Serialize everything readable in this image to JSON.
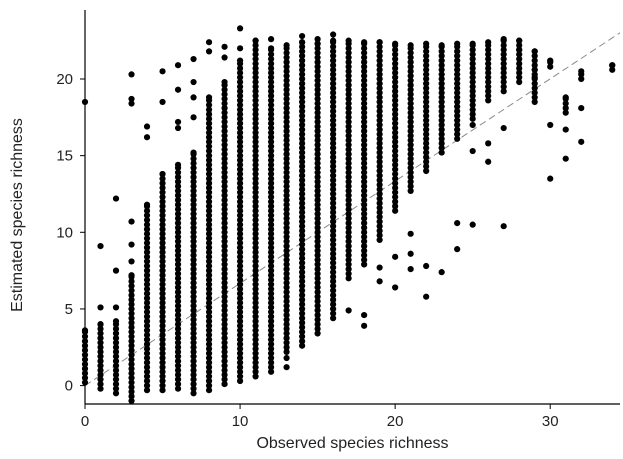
{
  "chart_data": {
    "type": "scatter",
    "xlabel": "Observed species richness",
    "ylabel": "Estimated species richness",
    "xlim": [
      0,
      34.5
    ],
    "ylim": [
      -1.2,
      24.5
    ],
    "xticks": [
      0,
      10,
      20,
      30
    ],
    "yticks": [
      0,
      5,
      10,
      15,
      20
    ],
    "grid": false,
    "reference_line": {
      "slope": 0.667,
      "intercept": 0,
      "style": "dashed"
    },
    "point_color": "#000000",
    "ref_line_color": "#8a8a8a",
    "columns": [
      {
        "x": 0,
        "ymin": 0.2,
        "ymax": 3.6,
        "extra": [
          18.5
        ]
      },
      {
        "x": 1,
        "ymin": -0.2,
        "ymax": 4.0,
        "extra": [
          5.1,
          9.1
        ]
      },
      {
        "x": 2,
        "ymin": -0.5,
        "ymax": 4.2,
        "extra": [
          5.1,
          7.5,
          12.2
        ]
      },
      {
        "x": 3,
        "ymin": -1.0,
        "ymax": 7.2,
        "extra": [
          8.1,
          9.2,
          10.7,
          18.4,
          18.7,
          20.3
        ]
      },
      {
        "x": 4,
        "ymin": -0.3,
        "ymax": 11.8,
        "extra": [
          16.2,
          16.9
        ]
      },
      {
        "x": 5,
        "ymin": -0.3,
        "ymax": 13.8,
        "extra": [
          18.5,
          20.5
        ]
      },
      {
        "x": 6,
        "ymin": -0.2,
        "ymax": 14.4,
        "extra": [
          16.8,
          17.2,
          19.3,
          20.9
        ]
      },
      {
        "x": 7,
        "ymin": -0.5,
        "ymax": 15.2,
        "extra": [
          17.5,
          18.8,
          19.8,
          21.3
        ]
      },
      {
        "x": 8,
        "ymin": -0.3,
        "ymax": 18.8,
        "extra": [
          21.8,
          22.4
        ]
      },
      {
        "x": 9,
        "ymin": 0.1,
        "ymax": 19.8,
        "extra": [
          21.4,
          22.1
        ]
      },
      {
        "x": 10,
        "ymin": 0.3,
        "ymax": 21.2,
        "extra": [
          22.0,
          23.3
        ]
      },
      {
        "x": 11,
        "ymin": 0.6,
        "ymax": 22.5,
        "extra": []
      },
      {
        "x": 12,
        "ymin": 0.9,
        "ymax": 22.0,
        "extra": [
          22.6
        ]
      },
      {
        "x": 13,
        "ymin": 2.2,
        "ymax": 22.2,
        "extra": [
          1.8,
          1.2
        ]
      },
      {
        "x": 14,
        "ymin": 2.6,
        "ymax": 22.4,
        "extra": [
          22.8
        ]
      },
      {
        "x": 15,
        "ymin": 3.4,
        "ymax": 22.3,
        "extra": [
          22.6
        ]
      },
      {
        "x": 16,
        "ymin": 4.4,
        "ymax": 22.5,
        "extra": [
          22.9
        ]
      },
      {
        "x": 17,
        "ymin": 7.0,
        "ymax": 22.5,
        "extra": [
          4.9
        ]
      },
      {
        "x": 18,
        "ymin": 7.9,
        "ymax": 22.4,
        "extra": [
          4.6,
          3.9
        ]
      },
      {
        "x": 19,
        "ymin": 9.5,
        "ymax": 22.4,
        "extra": [
          6.8,
          7.7
        ]
      },
      {
        "x": 20,
        "ymin": 11.4,
        "ymax": 22.3,
        "extra": [
          8.4,
          6.4
        ]
      },
      {
        "x": 21,
        "ymin": 12.7,
        "ymax": 22.2,
        "extra": [
          9.9,
          8.6,
          7.6
        ]
      },
      {
        "x": 22,
        "ymin": 14.0,
        "ymax": 22.3,
        "extra": [
          5.8,
          7.8
        ]
      },
      {
        "x": 23,
        "ymin": 15.2,
        "ymax": 22.2,
        "extra": [
          7.4
        ]
      },
      {
        "x": 24,
        "ymin": 16.1,
        "ymax": 22.3,
        "extra": [
          10.6,
          8.9
        ]
      },
      {
        "x": 25,
        "ymin": 17.4,
        "ymax": 22.3,
        "extra": [
          10.5,
          15.3,
          17.0
        ]
      },
      {
        "x": 26,
        "ymin": 18.6,
        "ymax": 22.4,
        "extra": [
          14.6,
          15.8
        ]
      },
      {
        "x": 27,
        "ymin": 19.2,
        "ymax": 22.6,
        "extra": [
          10.4,
          16.8
        ]
      },
      {
        "x": 28,
        "ymin": 19.8,
        "ymax": 22.5,
        "extra": [
          21.9
        ]
      },
      {
        "x": 29,
        "ymin": 18.5,
        "ymax": 21.8,
        "extra": [
          20.1,
          20.6
        ]
      },
      {
        "x": 30,
        "ymin": 20.8,
        "ymax": 21.2,
        "extra": [
          13.5,
          17.0
        ]
      },
      {
        "x": 31,
        "ymin": 17.8,
        "ymax": 18.8,
        "extra": [
          14.8,
          16.7
        ]
      },
      {
        "x": 32,
        "ymin": 20.0,
        "ymax": 20.5,
        "extra": [
          15.9,
          18.1
        ]
      },
      {
        "x": 34,
        "ymin": 20.6,
        "ymax": 20.9,
        "extra": []
      }
    ]
  }
}
